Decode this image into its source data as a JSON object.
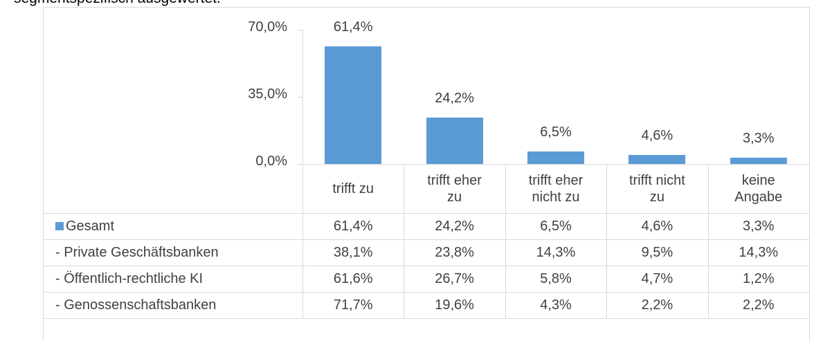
{
  "caption": "segmentspezifisch ausgewertet.",
  "chart_data": {
    "type": "bar",
    "categories": [
      "trifft zu",
      "trifft eher\nzu",
      "trifft eher\nnicht zu",
      "trifft nicht\nzu",
      "keine\nAngabe"
    ],
    "ylim": [
      0,
      70
    ],
    "yticks": [
      {
        "value": 0,
        "label": "0,0%"
      },
      {
        "value": 35,
        "label": "35,0%"
      },
      {
        "value": 70,
        "label": "70,0%"
      }
    ],
    "series": [
      {
        "name": "Gesamt",
        "color": "#5b9bd5",
        "values": [
          61.4,
          24.2,
          6.5,
          4.6,
          3.3
        ],
        "value_labels": [
          "61,4%",
          "24,2%",
          "6,5%",
          "4,6%",
          "3,3%"
        ]
      },
      {
        "name": "- Private Geschäftsbanken",
        "values": [
          38.1,
          23.8,
          14.3,
          9.5,
          14.3
        ],
        "value_labels": [
          "38,1%",
          "23,8%",
          "14,3%",
          "9,5%",
          "14,3%"
        ]
      },
      {
        "name": "- Öffentlich-rechtliche KI",
        "values": [
          61.6,
          26.7,
          5.8,
          4.7,
          1.2
        ],
        "value_labels": [
          "61,6%",
          "26,7%",
          "5,8%",
          "4,7%",
          "1,2%"
        ]
      },
      {
        "name": "- Genossenschaftsbanken",
        "values": [
          71.7,
          19.6,
          4.3,
          2.2,
          2.2
        ],
        "value_labels": [
          "71,7%",
          "19,6%",
          "4,3%",
          "2,2%",
          "2,2%"
        ]
      }
    ]
  }
}
